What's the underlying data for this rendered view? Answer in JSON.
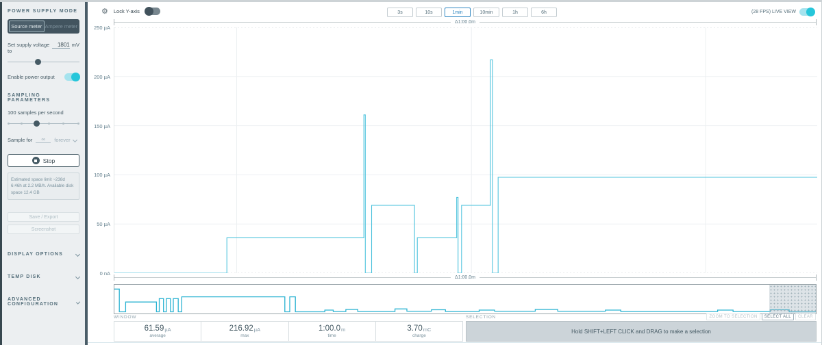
{
  "sidebar": {
    "power_supply_mode_header": "POWER SUPPLY MODE",
    "mode_source": "Source meter",
    "mode_ampere": "Ampere meter",
    "voltage_label": "Set supply voltage to",
    "voltage_value": "1801",
    "voltage_unit": "mV",
    "enable_power_label": "Enable power output",
    "sampling_header": "SAMPLING PARAMETERS",
    "sample_rate_label": "100 samples per second",
    "sample_for_label": "Sample for",
    "sample_for_value": "∞",
    "sample_for_option": "forever",
    "stop_label": "Stop",
    "space_info": "Estimated space limit ~238d 6:46h at 2.2 MB/h. Available disk space 12.4 GB",
    "save_export_label": "Save / Export",
    "screenshot_label": "Screenshot",
    "display_options_label": "DISPLAY OPTIONS",
    "temp_disk_label": "TEMP DISK",
    "advanced_config_label": "ADVANCED CONFIGURATION"
  },
  "toolbar": {
    "lock_y_label": "Lock Y-axis",
    "ranges": [
      "3s",
      "10s",
      "1min",
      "10min",
      "1h",
      "6h"
    ],
    "active_range": "1min",
    "live_view_label": "(28 FPS) LIVE VIEW"
  },
  "chart_data": {
    "type": "line",
    "unit": "µA",
    "ylim": [
      0,
      250
    ],
    "window_seconds": 60,
    "window_delta_label": "Δ1:00.0m",
    "y_ticks": [
      {
        "v": 250,
        "label": "250 µA"
      },
      {
        "v": 200,
        "label": "200 µA"
      },
      {
        "v": 150,
        "label": "150 µA"
      },
      {
        "v": 100,
        "label": "100 µA"
      },
      {
        "v": 50,
        "label": "50 µA"
      },
      {
        "v": 0,
        "label": "0 nA"
      }
    ],
    "vertical_gridlines_t": [
      0.174,
      0.508,
      0.841
    ],
    "line_color": "#4fc3dd",
    "series_note": "current in µA over the 1-min window; segments are [t_start, t_end, value_uA]",
    "segments": [
      [
        0.0,
        0.16,
        0
      ],
      [
        0.16,
        0.355,
        36
      ],
      [
        0.355,
        0.357,
        161
      ],
      [
        0.357,
        0.366,
        0
      ],
      [
        0.366,
        0.427,
        69
      ],
      [
        0.427,
        0.431,
        0
      ],
      [
        0.431,
        0.487,
        36
      ],
      [
        0.487,
        0.489,
        77
      ],
      [
        0.489,
        0.494,
        0
      ],
      [
        0.494,
        0.535,
        69
      ],
      [
        0.535,
        0.538,
        217
      ],
      [
        0.538,
        0.546,
        0
      ],
      [
        0.546,
        1.0,
        97.5
      ]
    ],
    "minimap": {
      "line_color": "#2bb3d2",
      "view_region_t": [
        0.934,
        1.0
      ],
      "segments": [
        [
          0.0,
          0.007,
          0.85
        ],
        [
          0.007,
          0.016,
          0.06
        ],
        [
          0.016,
          0.06,
          0.4
        ],
        [
          0.06,
          0.064,
          0.06
        ],
        [
          0.064,
          0.07,
          0.52
        ],
        [
          0.07,
          0.074,
          0.06
        ],
        [
          0.074,
          0.08,
          0.52
        ],
        [
          0.08,
          0.084,
          0.06
        ],
        [
          0.084,
          0.091,
          0.52
        ],
        [
          0.091,
          0.096,
          0.06
        ],
        [
          0.096,
          0.243,
          0.58
        ],
        [
          0.243,
          0.25,
          0.06
        ],
        [
          0.25,
          0.258,
          0.58
        ],
        [
          0.258,
          0.3,
          0.06
        ],
        [
          0.3,
          0.312,
          0.12
        ],
        [
          0.312,
          0.33,
          0.07
        ],
        [
          0.33,
          0.347,
          0.14
        ],
        [
          0.347,
          0.4,
          0.07
        ],
        [
          0.4,
          0.417,
          0.16
        ],
        [
          0.417,
          0.452,
          0.08
        ],
        [
          0.452,
          0.472,
          0.13
        ],
        [
          0.472,
          0.52,
          0.07
        ],
        [
          0.52,
          0.542,
          0.12
        ],
        [
          0.542,
          0.6,
          0.08
        ],
        [
          0.6,
          0.632,
          0.14
        ],
        [
          0.632,
          0.7,
          0.08
        ],
        [
          0.7,
          0.722,
          0.12
        ],
        [
          0.722,
          0.86,
          0.07
        ],
        [
          0.86,
          0.882,
          0.12
        ],
        [
          0.882,
          0.935,
          0.07
        ],
        [
          0.935,
          0.962,
          0.13
        ],
        [
          0.962,
          1.0,
          0.06
        ]
      ]
    }
  },
  "stats": {
    "window_label": "WINDOW",
    "cells": [
      {
        "value": "61.59",
        "unit": "µA",
        "label": "average"
      },
      {
        "value": "216.92",
        "unit": "µA",
        "label": "max"
      },
      {
        "value": "1:00.0",
        "unit": "m",
        "label": "time"
      },
      {
        "value": "3.70",
        "unit": "mC",
        "label": "charge"
      }
    ],
    "selection_label": "SELECTION",
    "selection_hint": "Hold SHIFT+LEFT CLICK and DRAG to make a selection",
    "zoom_to_selection": "ZOOM TO SELECTION",
    "select_all": "SELECT ALL",
    "clear": "CLEAR"
  }
}
